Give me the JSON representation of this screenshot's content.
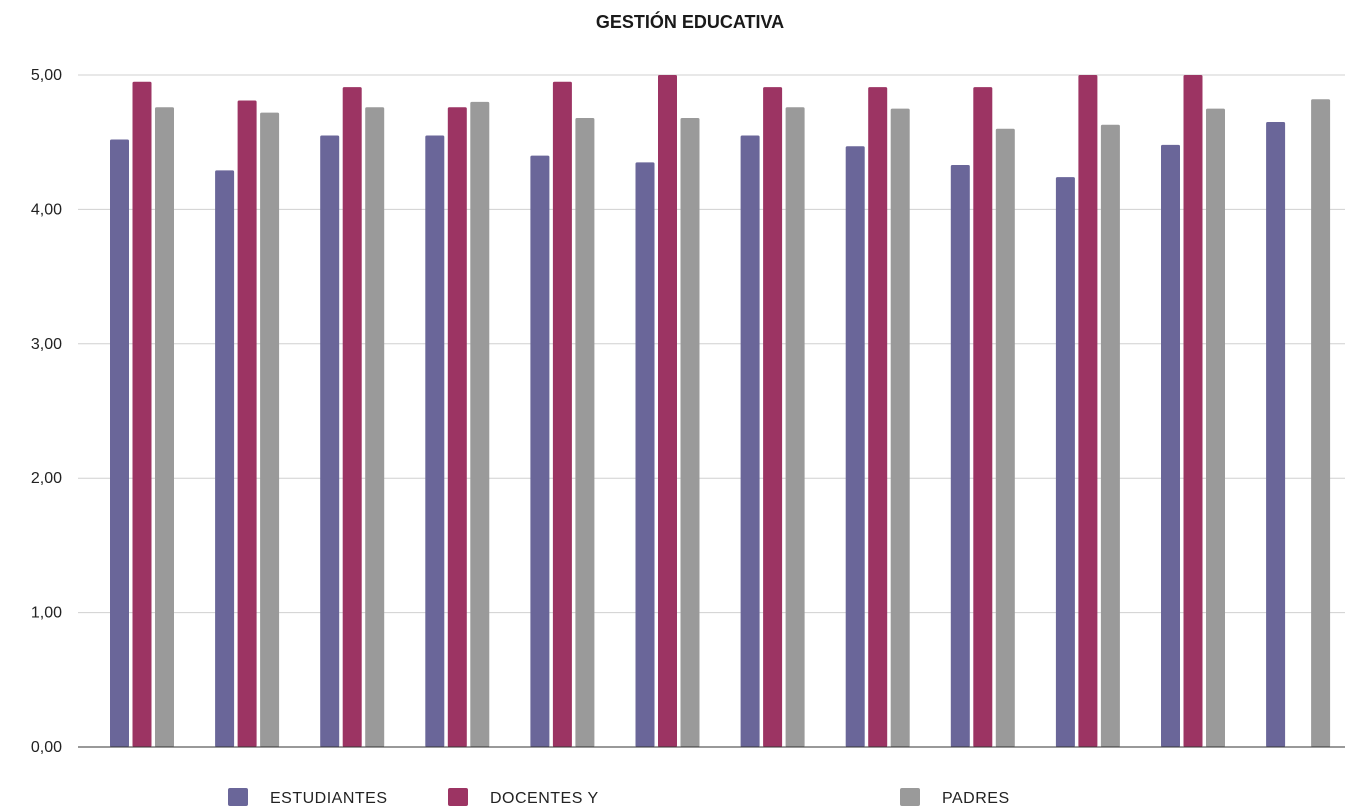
{
  "chart_data": {
    "type": "bar",
    "title": "GESTIÓN EDUCATIVA",
    "xlabel": "",
    "ylabel": "",
    "ylim": [
      0,
      5
    ],
    "yticks": [
      0,
      1,
      2,
      3,
      4,
      5
    ],
    "ytick_labels": [
      "0,00",
      "1,00",
      "2,00",
      "3,00",
      "4,00",
      "5,00"
    ],
    "grid": true,
    "legend_position": "bottom",
    "categories": [
      "",
      "",
      "",
      "",
      "",
      "",
      "",
      "",
      "",
      "",
      "",
      ""
    ],
    "series": [
      {
        "name": "ESTUDIANTES",
        "color": "#6a6699",
        "values": [
          4.52,
          4.29,
          4.55,
          4.55,
          4.4,
          4.35,
          4.55,
          4.47,
          4.33,
          4.24,
          4.48,
          4.65
        ]
      },
      {
        "name": "DOCENTES Y",
        "color": "#9c3463",
        "values": [
          4.95,
          4.81,
          4.91,
          4.76,
          4.95,
          5.0,
          4.91,
          4.91,
          4.91,
          5.0,
          5.0,
          null
        ]
      },
      {
        "name": "PADRES",
        "color": "#9a9a9a",
        "values": [
          4.76,
          4.72,
          4.76,
          4.8,
          4.68,
          4.68,
          4.76,
          4.75,
          4.6,
          4.63,
          4.75,
          4.82
        ]
      }
    ]
  }
}
